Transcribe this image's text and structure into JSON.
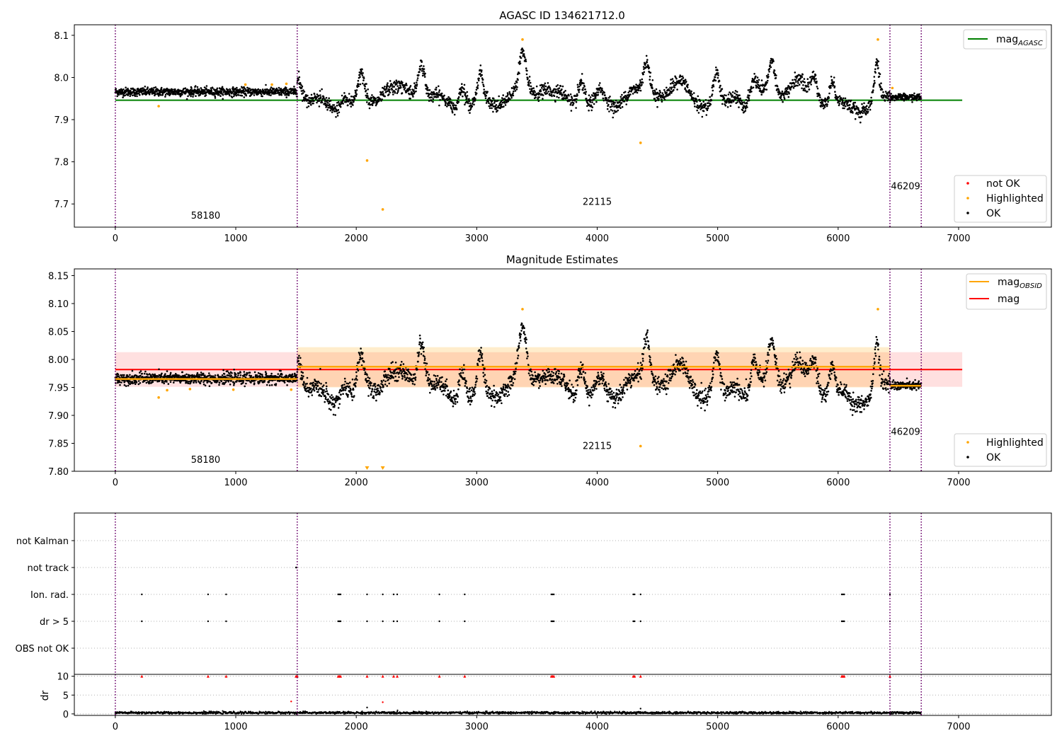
{
  "chart_data": [
    {
      "type": "scatter",
      "title": "AGASC ID 134621712.0",
      "xlim": [
        -340,
        7770
      ],
      "ylim": [
        7.645,
        8.125
      ],
      "x_ticks": [
        0,
        1000,
        2000,
        3000,
        4000,
        5000,
        6000,
        7000
      ],
      "y_ticks": [
        7.7,
        7.8,
        7.9,
        8.0,
        8.1
      ],
      "y_tick_labels": [
        "7.7",
        "7.8",
        "7.9",
        "8.0",
        "8.1"
      ],
      "grid": false,
      "vlines": [
        0,
        1510,
        6430,
        6690
      ],
      "obsid_labels": [
        {
          "text": "58180",
          "x": 750,
          "y": 7.665
        },
        {
          "text": "22115",
          "x": 4000,
          "y": 7.698
        },
        {
          "text": "46209",
          "x": 6560,
          "y": 7.735
        }
      ],
      "hlines": [
        {
          "name": "mag_AGASC",
          "y": 7.946,
          "x_range": [
            0,
            7030
          ],
          "color": "#008000"
        }
      ],
      "legend_upper": {
        "placement": "top-right",
        "entries": [
          {
            "name": "mag",
            "sub": "AGASC",
            "color": "#008000"
          }
        ]
      },
      "legend_lower": {
        "placement": "bottom-right",
        "entries": [
          {
            "name": "not OK",
            "color": "#ff0000"
          },
          {
            "name": "Highlighted",
            "color": "#ffa500"
          },
          {
            "name": "OK",
            "color": "#000000"
          }
        ]
      },
      "segments": [
        {
          "x": [
            0,
            1510
          ],
          "mean": 7.966,
          "noise": 0.005
        },
        {
          "x": [
            1510,
            6430
          ],
          "mean": 7.99,
          "noise": 0.008,
          "variable": true
        },
        {
          "x": [
            6430,
            6690
          ],
          "mean": 7.953,
          "noise": 0.004
        }
      ],
      "highlighted": [
        [
          360,
          7.932
        ],
        [
          1080,
          7.983
        ],
        [
          1300,
          7.983
        ],
        [
          1420,
          7.985
        ],
        [
          2090,
          7.803
        ],
        [
          2220,
          7.687
        ],
        [
          3380,
          8.09
        ],
        [
          4360,
          7.845
        ],
        [
          6330,
          8.09
        ],
        [
          6450,
          7.975
        ]
      ],
      "series_colors": {
        "ok": "#000000",
        "highlighted": "#ffa500",
        "not_ok": "#ff0000"
      }
    },
    {
      "type": "scatter",
      "title": "Magnitude Estimates",
      "xlim": [
        -340,
        7770
      ],
      "ylim": [
        7.8,
        8.162
      ],
      "x_ticks": [
        0,
        1000,
        2000,
        3000,
        4000,
        5000,
        6000,
        7000
      ],
      "y_ticks": [
        7.8,
        7.85,
        7.9,
        7.95,
        8.0,
        8.05,
        8.1,
        8.15
      ],
      "y_tick_labels": [
        "7.80",
        "7.85",
        "7.90",
        "7.95",
        "8.00",
        "8.05",
        "8.10",
        "8.15"
      ],
      "grid": false,
      "vlines": [
        0,
        1510,
        6430,
        6690
      ],
      "obsid_labels": [
        {
          "text": "58180",
          "x": 750,
          "y": 7.815
        },
        {
          "text": "22115",
          "x": 4000,
          "y": 7.84
        },
        {
          "text": "46209",
          "x": 6560,
          "y": 7.865
        }
      ],
      "mag_band": {
        "name": "mag",
        "y": 7.982,
        "low": 7.951,
        "high": 8.013,
        "x_range": [
          0,
          7030
        ],
        "color": "#ff0000"
      },
      "obsid_mags": [
        {
          "x": [
            0,
            1510
          ],
          "mag": 7.965,
          "low": 7.961,
          "high": 7.969
        },
        {
          "x": [
            1510,
            6430
          ],
          "mag": 7.987,
          "low": 7.95,
          "high": 8.022
        },
        {
          "x": [
            6430,
            6690
          ],
          "mag": 7.953,
          "low": 7.949,
          "high": 7.957
        }
      ],
      "legend_upper": {
        "placement": "top-right",
        "entries": [
          {
            "name": "mag",
            "sub": "OBSID",
            "color": "#ffa500"
          },
          {
            "name": "mag",
            "sub": "",
            "color": "#ff0000"
          }
        ]
      },
      "legend_lower": {
        "placement": "bottom-right",
        "entries": [
          {
            "name": "Highlighted",
            "color": "#ffa500"
          },
          {
            "name": "OK",
            "color": "#000000"
          }
        ]
      },
      "highlighted": [
        [
          360,
          7.932
        ],
        [
          430,
          7.945
        ],
        [
          620,
          7.947
        ],
        [
          980,
          7.946
        ],
        [
          1460,
          7.946
        ],
        [
          3380,
          8.09
        ],
        [
          4360,
          7.845
        ],
        [
          6330,
          8.09
        ]
      ],
      "clipped_markers": [
        2090,
        2220
      ]
    },
    {
      "type": "scatter",
      "xlim": [
        -340,
        7770
      ],
      "categories": [
        "OBS not OK",
        "dr > 5",
        "Ion. rad.",
        "not track",
        "not Kalman"
      ],
      "grid": "horizontal-dotted",
      "vlines": [
        0,
        1510,
        6430,
        6690
      ],
      "flag_points": {
        "not track": [
          1500,
          1505
        ],
        "Ion. rad.": [
          220,
          770,
          920,
          1850,
          1860,
          1870,
          2090,
          2220,
          2310,
          2340,
          2690,
          2900,
          3620,
          3630,
          3640,
          4300,
          4310,
          4360,
          6030,
          6040,
          6050,
          6430
        ],
        "dr > 5": [
          220,
          770,
          920,
          1850,
          1860,
          1870,
          2090,
          2220,
          2310,
          2340,
          2690,
          2900,
          3620,
          3630,
          3640,
          4300,
          4310,
          4360,
          6030,
          6040,
          6050,
          6430
        ]
      }
    },
    {
      "type": "scatter",
      "xlim": [
        -340,
        7770
      ],
      "ylim": [
        -0.4,
        10.5
      ],
      "ylabel": "dr",
      "x_ticks": [
        0,
        1000,
        2000,
        3000,
        4000,
        5000,
        6000,
        7000
      ],
      "y_ticks": [
        0,
        5,
        10
      ],
      "y_tick_labels": [
        "0",
        "5",
        "10"
      ],
      "grid": "horizontal-dotted",
      "vlines": [
        0,
        1510,
        6430,
        6690
      ],
      "capped_points": [
        220,
        770,
        920,
        1500,
        1510,
        1850,
        1860,
        1870,
        2090,
        2220,
        2310,
        2340,
        2690,
        2900,
        3620,
        3630,
        3640,
        4300,
        4310,
        4360,
        6030,
        6040,
        6050,
        6430
      ],
      "outliers": [
        [
          1460,
          3.3
        ],
        [
          2220,
          3.1
        ],
        [
          2090,
          1.7
        ],
        [
          4360,
          1.4
        ]
      ],
      "baseline": {
        "mean": 0.3,
        "noise": 0.15
      }
    }
  ]
}
